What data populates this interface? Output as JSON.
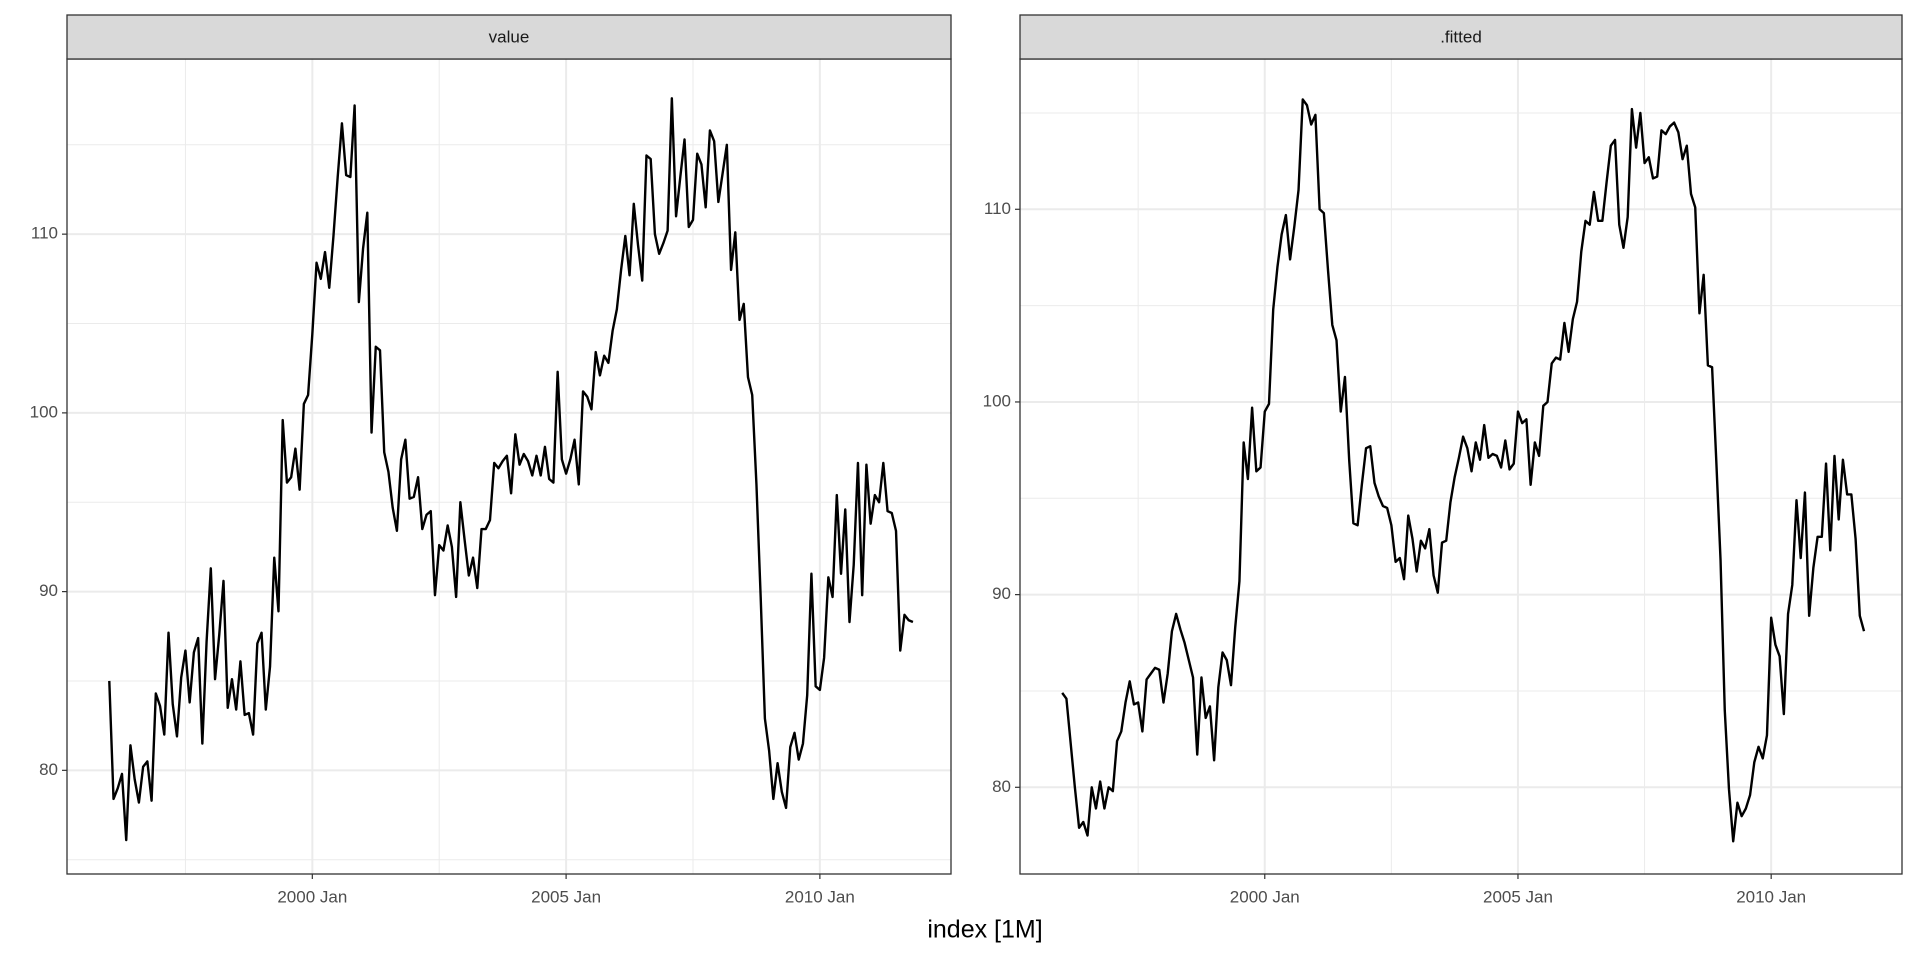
{
  "chart_data": {
    "type": "line",
    "x_label": "index [1M]",
    "color": "#000000",
    "grid": true,
    "x": [
      "1996 Jan",
      "1996 Feb",
      "1996 Mar",
      "1996 Apr",
      "1996 May",
      "1996 Jun",
      "1996 Jul",
      "1996 Aug",
      "1996 Sep",
      "1996 Oct",
      "1996 Nov",
      "1996 Dec",
      "1997 Jan",
      "1997 Feb",
      "1997 Mar",
      "1997 Apr",
      "1997 May",
      "1997 Jun",
      "1997 Jul",
      "1997 Aug",
      "1997 Sep",
      "1997 Oct",
      "1997 Nov",
      "1997 Dec",
      "1998 Jan",
      "1998 Feb",
      "1998 Mar",
      "1998 Apr",
      "1998 May",
      "1998 Jun",
      "1998 Jul",
      "1998 Aug",
      "1998 Sep",
      "1998 Oct",
      "1998 Nov",
      "1998 Dec",
      "1999 Jan",
      "1999 Feb",
      "1999 Mar",
      "1999 Apr",
      "1999 May",
      "1999 Jun",
      "1999 Jul",
      "1999 Aug",
      "1999 Sep",
      "1999 Oct",
      "1999 Nov",
      "1999 Dec",
      "2000 Jan",
      "2000 Feb",
      "2000 Mar",
      "2000 Apr",
      "2000 May",
      "2000 Jun",
      "2000 Jul",
      "2000 Aug",
      "2000 Sep",
      "2000 Oct",
      "2000 Nov",
      "2000 Dec",
      "2001 Jan",
      "2001 Feb",
      "2001 Mar",
      "2001 Apr",
      "2001 May",
      "2001 Jun",
      "2001 Jul",
      "2001 Aug",
      "2001 Sep",
      "2001 Oct",
      "2001 Nov",
      "2001 Dec",
      "2002 Jan",
      "2002 Feb",
      "2002 Mar",
      "2002 Apr",
      "2002 May",
      "2002 Jun",
      "2002 Jul",
      "2002 Aug",
      "2002 Sep",
      "2002 Oct",
      "2002 Nov",
      "2002 Dec",
      "2003 Jan",
      "2003 Feb",
      "2003 Mar",
      "2003 Apr",
      "2003 May",
      "2003 Jun",
      "2003 Jul",
      "2003 Aug",
      "2003 Sep",
      "2003 Oct",
      "2003 Nov",
      "2003 Dec",
      "2004 Jan",
      "2004 Feb",
      "2004 Mar",
      "2004 Apr",
      "2004 May",
      "2004 Jun",
      "2004 Jul",
      "2004 Aug",
      "2004 Sep",
      "2004 Oct",
      "2004 Nov",
      "2004 Dec",
      "2005 Jan",
      "2005 Feb",
      "2005 Mar",
      "2005 Apr",
      "2005 May",
      "2005 Jun",
      "2005 Jul",
      "2005 Aug",
      "2005 Sep",
      "2005 Oct",
      "2005 Nov",
      "2005 Dec",
      "2006 Jan",
      "2006 Feb",
      "2006 Mar",
      "2006 Apr",
      "2006 May",
      "2006 Jun",
      "2006 Jul",
      "2006 Aug",
      "2006 Sep",
      "2006 Oct",
      "2006 Nov",
      "2006 Dec",
      "2007 Jan",
      "2007 Feb",
      "2007 Mar",
      "2007 Apr",
      "2007 May",
      "2007 Jun",
      "2007 Jul",
      "2007 Aug",
      "2007 Sep",
      "2007 Oct",
      "2007 Nov",
      "2007 Dec",
      "2008 Jan",
      "2008 Feb",
      "2008 Mar",
      "2008 Apr",
      "2008 May",
      "2008 Jun",
      "2008 Jul",
      "2008 Aug",
      "2008 Sep",
      "2008 Oct",
      "2008 Nov",
      "2008 Dec",
      "2009 Jan",
      "2009 Feb",
      "2009 Mar",
      "2009 Apr",
      "2009 May",
      "2009 Jun",
      "2009 Jul",
      "2009 Aug",
      "2009 Sep",
      "2009 Oct",
      "2009 Nov",
      "2009 Dec",
      "2010 Jan",
      "2010 Feb",
      "2010 Mar",
      "2010 Apr",
      "2010 May",
      "2010 Jun",
      "2010 Jul",
      "2010 Aug",
      "2010 Sep",
      "2010 Oct",
      "2010 Nov",
      "2010 Dec",
      "2011 Jan",
      "2011 Feb",
      "2011 Mar",
      "2011 Apr",
      "2011 May",
      "2011 Jun",
      "2011 Jul",
      "2011 Aug",
      "2011 Sep",
      "2011 Oct",
      "2011 Nov"
    ],
    "xlim": [
      "1995 Mar",
      "2012 Aug"
    ],
    "xticks": [
      "2000 Jan",
      "2005 Jan",
      "2010 Jan"
    ],
    "panels": [
      {
        "title": "value",
        "ylim": [
          74.2,
          119.8
        ],
        "yticks": [
          80,
          90,
          100,
          110
        ],
        "values": [
          85,
          78.4,
          79,
          79.8,
          76.1,
          81.4,
          79.5,
          78.2,
          80.2,
          80.5,
          78.3,
          84.3,
          83.6,
          82,
          87.7,
          83.7,
          81.9,
          85.2,
          86.7,
          83.8,
          86.6,
          87.4,
          81.5,
          87.2,
          91.3,
          85.1,
          87.6,
          90.6,
          83.5,
          85.1,
          83.4,
          86.1,
          83.1,
          83.2,
          82,
          87.1,
          87.7,
          83.4,
          85.8,
          91.9,
          88.9,
          99.6,
          96.1,
          96.4,
          98,
          95.7,
          100.5,
          101,
          104.4,
          108.4,
          107.5,
          109,
          107,
          109.9,
          113.2,
          116.2,
          113.3,
          113.2,
          117.2,
          106.2,
          109.2,
          111.2,
          98.9,
          103.7,
          103.5,
          97.8,
          96.7,
          94.7,
          93.4,
          97.4,
          98.5,
          95.2,
          95.3,
          96.4,
          93.5,
          94.3,
          94.5,
          89.8,
          92.6,
          92.3,
          93.7,
          92.5,
          89.7,
          95,
          92.9,
          90.9,
          91.9,
          90.2,
          93.5,
          93.5,
          94,
          97.2,
          96.9,
          97.3,
          97.6,
          95.5,
          98.8,
          97.1,
          97.7,
          97.3,
          96.5,
          97.6,
          96.5,
          98.1,
          96.3,
          96.1,
          102.3,
          97.4,
          96.6,
          97.4,
          98.5,
          96,
          101.2,
          100.9,
          100.2,
          103.4,
          102.1,
          103.2,
          102.8,
          104.6,
          105.8,
          108,
          109.9,
          107.7,
          111.7,
          109.4,
          107.4,
          114.4,
          114.2,
          110,
          108.9,
          109.5,
          110.2,
          117.6,
          111,
          113.2,
          115.3,
          110.4,
          110.8,
          114.5,
          113.9,
          111.5,
          115.8,
          115.2,
          111.8,
          113.4,
          115,
          108,
          110.1,
          105.2,
          106.1,
          102,
          101,
          96,
          89.7,
          82.9,
          81.1,
          78.4,
          80.4,
          78.8,
          77.9,
          81.3,
          82.1,
          80.6,
          81.5,
          84.2,
          91,
          84.7,
          84.5,
          86.3,
          90.8,
          89.7,
          95.4,
          91,
          94.6,
          88.3,
          91.5,
          97.2,
          89.8,
          97.1,
          93.8,
          95.4,
          95,
          97.2,
          94.5,
          94.4,
          93.4,
          86.7,
          88.7,
          88.4,
          88.3
        ]
      },
      {
        "title": ".fitted",
        "ylim": [
          75.5,
          117.8
        ],
        "yticks": [
          80,
          90,
          100,
          110
        ],
        "values": [
          84.9,
          84.6,
          82.3,
          80,
          77.9,
          78.2,
          77.5,
          80,
          78.9,
          80.3,
          78.9,
          80,
          79.8,
          82.4,
          82.9,
          84.4,
          85.5,
          84.3,
          84.4,
          82.9,
          85.6,
          85.9,
          86.2,
          86.1,
          84.4,
          85.9,
          88.1,
          89,
          88.2,
          87.5,
          86.6,
          85.7,
          81.7,
          85.7,
          83.6,
          84.2,
          81.4,
          85.2,
          87,
          86.6,
          85.3,
          88.3,
          90.7,
          97.9,
          96,
          99.7,
          96.4,
          96.6,
          99.5,
          99.9,
          104.8,
          107,
          108.7,
          109.7,
          107.4,
          109.1,
          111,
          115.7,
          115.4,
          114.4,
          114.9,
          110,
          109.8,
          106.8,
          104,
          103.2,
          99.5,
          101.3,
          97,
          93.7,
          93.6,
          95.7,
          97.6,
          97.7,
          95.8,
          95.1,
          94.6,
          94.5,
          93.6,
          91.7,
          91.9,
          90.8,
          94.1,
          92.9,
          91.2,
          92.8,
          92.4,
          93.4,
          91,
          90.1,
          92.7,
          92.8,
          94.8,
          96.1,
          97.1,
          98.2,
          97.6,
          96.4,
          97.9,
          97,
          98.8,
          97.1,
          97.3,
          97.2,
          96.6,
          98,
          96.5,
          96.8,
          99.5,
          98.9,
          99.1,
          95.7,
          97.9,
          97.2,
          99.8,
          100,
          102,
          102.3,
          102.2,
          104.1,
          102.6,
          104.3,
          105.2,
          107.8,
          109.4,
          109.2,
          110.9,
          109.4,
          109.4,
          111.4,
          113.3,
          113.6,
          109.2,
          108,
          109.6,
          115.2,
          113.2,
          115,
          112.4,
          112.7,
          111.6,
          111.7,
          114.1,
          113.9,
          114.3,
          114.5,
          114,
          112.6,
          113.3,
          110.8,
          110.1,
          104.6,
          106.6,
          101.9,
          101.8,
          96.9,
          91.8,
          84,
          79.9,
          77.2,
          79.2,
          78.5,
          78.9,
          79.6,
          81.3,
          82.1,
          81.5,
          82.7,
          88.8,
          87.4,
          86.8,
          83.8,
          89,
          90.5,
          94.9,
          91.9,
          95.3,
          88.9,
          91.4,
          93,
          93,
          96.8,
          92.3,
          97.2,
          93.9,
          97,
          95.2,
          95.2,
          92.9,
          88.9,
          88.1
        ]
      }
    ]
  }
}
